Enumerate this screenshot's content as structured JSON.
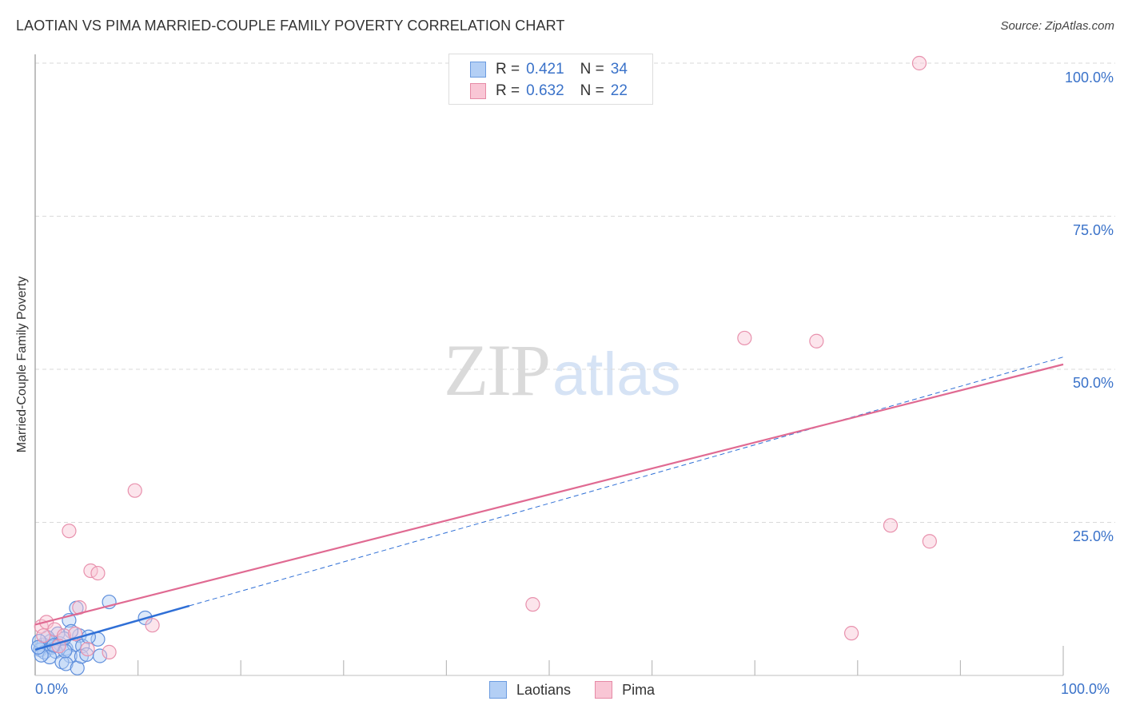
{
  "header": {
    "title": "LAOTIAN VS PIMA MARRIED-COUPLE FAMILY POVERTY CORRELATION CHART",
    "source": "Source: ZipAtlas.com"
  },
  "watermark": {
    "zip": "ZIP",
    "atlas": "atlas"
  },
  "legend": {
    "rows": [
      {
        "r_label": "R =",
        "r_value": "0.421",
        "n_label": "N =",
        "n_value": "34",
        "color": "#b3cff5",
        "border": "#6b9be0"
      },
      {
        "r_label": "R =",
        "r_value": "0.632",
        "n_label": "N =",
        "n_value": "22",
        "color": "#f9c6d5",
        "border": "#e68aa6"
      }
    ]
  },
  "bottom_legend": [
    {
      "label": "Laotians",
      "color": "#b3cff5",
      "border": "#6b9be0"
    },
    {
      "label": "Pima",
      "color": "#f9c6d5",
      "border": "#e68aa6"
    }
  ],
  "axes": {
    "ylabel": "Married-Couple Family Poverty",
    "y_ticks": [
      "100.0%",
      "75.0%",
      "50.0%",
      "25.0%"
    ],
    "x_ticks": [
      "0.0%",
      "100.0%"
    ]
  },
  "colors": {
    "laotian_line": "#2f6fd6",
    "pima_line": "#e06a92",
    "tick_label": "#3a72c9",
    "grid": "#d9d9d9"
  },
  "chart_data": {
    "type": "scatter",
    "title": "LAOTIAN VS PIMA MARRIED-COUPLE FAMILY POVERTY CORRELATION CHART",
    "xlabel": "",
    "ylabel": "Married-Couple Family Poverty",
    "xlim": [
      0,
      100
    ],
    "ylim": [
      0,
      100
    ],
    "x_tick_labels": [
      "0.0%",
      "100.0%"
    ],
    "y_tick_labels": [
      "25.0%",
      "50.0%",
      "75.0%",
      "100.0%"
    ],
    "grid": true,
    "legend_position": "top-center and bottom",
    "series": [
      {
        "name": "Laotians",
        "R": 0.421,
        "N": 34,
        "trend": {
          "x0": 0,
          "y0": 4.2,
          "x1": 100,
          "y1": 52.0,
          "solid_until_x": 15
        },
        "points": [
          [
            7.2,
            12.0
          ],
          [
            4.0,
            11.0
          ],
          [
            10.7,
            9.4
          ],
          [
            3.3,
            9.0
          ],
          [
            6.1,
            5.9
          ],
          [
            4.3,
            6.5
          ],
          [
            3.5,
            7.2
          ],
          [
            2.2,
            6.8
          ],
          [
            1.5,
            5.6
          ],
          [
            0.8,
            5.0
          ],
          [
            0.5,
            4.2
          ],
          [
            0.9,
            3.8
          ],
          [
            1.6,
            4.6
          ],
          [
            2.4,
            5.2
          ],
          [
            3.0,
            4.4
          ],
          [
            3.8,
            5.0
          ],
          [
            4.6,
            4.8
          ],
          [
            5.2,
            6.3
          ],
          [
            2.8,
            6.0
          ],
          [
            1.2,
            6.2
          ],
          [
            0.4,
            5.6
          ],
          [
            2.0,
            3.9
          ],
          [
            3.4,
            3.2
          ],
          [
            1.4,
            3.0
          ],
          [
            2.6,
            2.2
          ],
          [
            3.0,
            1.9
          ],
          [
            4.1,
            1.2
          ],
          [
            4.5,
            3.1
          ],
          [
            6.3,
            3.2
          ],
          [
            5.0,
            3.4
          ],
          [
            0.6,
            3.3
          ],
          [
            1.8,
            4.9
          ],
          [
            2.9,
            4.0
          ],
          [
            0.3,
            4.6
          ]
        ]
      },
      {
        "name": "Pima",
        "R": 0.632,
        "N": 22,
        "trend": {
          "x0": 0,
          "y0": 8.3,
          "x1": 100,
          "y1": 50.8
        },
        "points": [
          [
            86.0,
            100.0
          ],
          [
            69.0,
            55.1
          ],
          [
            76.0,
            54.6
          ],
          [
            9.7,
            30.2
          ],
          [
            3.3,
            23.6
          ],
          [
            83.2,
            24.5
          ],
          [
            87.0,
            21.9
          ],
          [
            5.4,
            17.1
          ],
          [
            6.1,
            16.7
          ],
          [
            48.4,
            11.6
          ],
          [
            4.3,
            11.1
          ],
          [
            11.4,
            8.2
          ],
          [
            79.4,
            6.9
          ],
          [
            7.2,
            3.8
          ],
          [
            0.6,
            8.0
          ],
          [
            1.1,
            8.7
          ],
          [
            1.9,
            7.5
          ],
          [
            2.8,
            6.5
          ],
          [
            3.9,
            6.8
          ],
          [
            5.1,
            4.3
          ],
          [
            0.8,
            6.5
          ],
          [
            2.3,
            4.8
          ]
        ]
      }
    ]
  }
}
